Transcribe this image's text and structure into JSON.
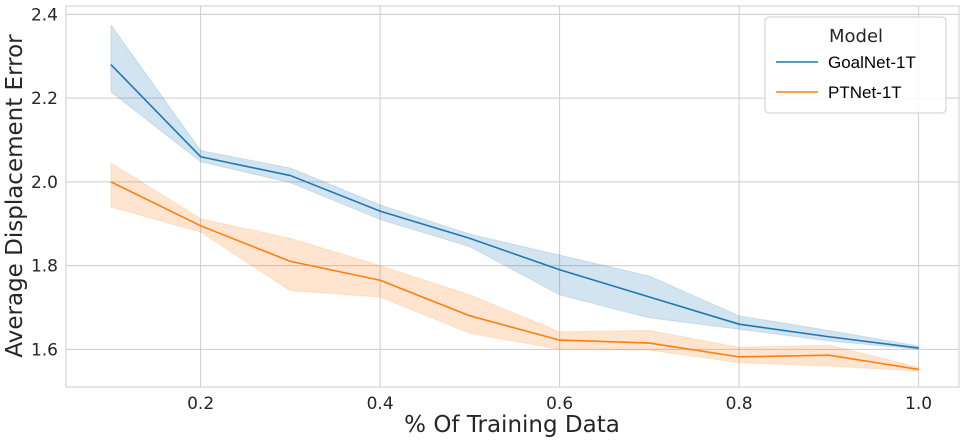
{
  "chart_data": {
    "type": "line",
    "title": "",
    "xlabel": "% Of Training Data",
    "ylabel": "Average Displacement Error",
    "xlim": [
      0.05,
      1.045
    ],
    "ylim": [
      1.51,
      2.42
    ],
    "xticks": [
      0.2,
      0.4,
      0.6,
      0.8,
      1.0
    ],
    "xtick_labels": [
      "0.2",
      "0.4",
      "0.6",
      "0.8",
      "1.0"
    ],
    "yticks": [
      1.6,
      1.8,
      2.0,
      2.2,
      2.4
    ],
    "ytick_labels": [
      "1.6",
      "1.8",
      "2.0",
      "2.2",
      "2.4"
    ],
    "grid": true,
    "legend": {
      "title": "Model",
      "position": "top-right"
    },
    "x": [
      0.1,
      0.2,
      0.3,
      0.4,
      0.5,
      0.6,
      0.7,
      0.8,
      0.9,
      1.0
    ],
    "series": [
      {
        "name": "GoalNet-1T",
        "color": "#1f77b4",
        "values": [
          2.28,
          2.06,
          2.015,
          1.93,
          1.865,
          1.79,
          1.725,
          1.66,
          1.63,
          1.603
        ],
        "lower": [
          2.215,
          2.048,
          1.998,
          1.91,
          1.845,
          1.73,
          1.675,
          1.648,
          1.62,
          1.6
        ],
        "upper": [
          2.375,
          2.075,
          2.033,
          1.945,
          1.875,
          1.825,
          1.775,
          1.68,
          1.645,
          1.608
        ]
      },
      {
        "name": "PTNet-1T",
        "color": "#ff7f0e",
        "values": [
          2.0,
          1.895,
          1.81,
          1.765,
          1.68,
          1.622,
          1.615,
          1.582,
          1.586,
          1.552
        ],
        "lower": [
          1.94,
          1.88,
          1.74,
          1.725,
          1.638,
          1.6,
          1.598,
          1.568,
          1.56,
          1.548
        ],
        "upper": [
          2.045,
          1.912,
          1.865,
          1.8,
          1.73,
          1.642,
          1.645,
          1.605,
          1.61,
          1.557
        ]
      }
    ]
  }
}
